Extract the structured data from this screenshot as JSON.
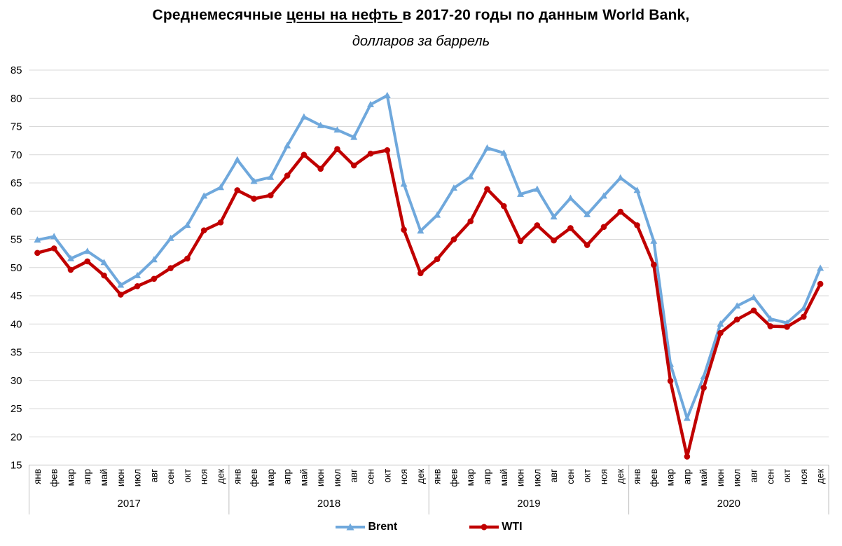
{
  "title": {
    "part1": "Среднемесячные ",
    "underlined": "цены на нефть ",
    "part2": "в 2017-20 годы по данным World Bank,",
    "subtitle": "долларов за баррель"
  },
  "chart_data": {
    "type": "line",
    "x_months": [
      "янв",
      "фев",
      "мар",
      "апр",
      "май",
      "июн",
      "июл",
      "авг",
      "сен",
      "окт",
      "ноя",
      "дек"
    ],
    "x_years": [
      "2017",
      "2018",
      "2019",
      "2020"
    ],
    "y_ticks": [
      15,
      20,
      25,
      30,
      35,
      40,
      45,
      50,
      55,
      60,
      65,
      70,
      75,
      80,
      85
    ],
    "ylim": [
      15,
      85
    ],
    "grid": "horizontal",
    "grid_color": "#D9D9D9",
    "axis_color": "#BFBFBF",
    "label_color": "#000000",
    "legend_position": "bottom",
    "series": [
      {
        "name": "Brent",
        "color": "#6FA8DC",
        "marker": "triangle",
        "values": [
          54.9,
          55.5,
          51.6,
          52.9,
          50.9,
          46.9,
          48.6,
          51.4,
          55.2,
          57.5,
          62.7,
          64.2,
          69.1,
          65.3,
          66.0,
          71.6,
          76.7,
          75.2,
          74.4,
          73.1,
          78.9,
          80.5,
          64.8,
          56.5,
          59.3,
          64.1,
          66.1,
          71.2,
          70.3,
          63.0,
          63.9,
          59.0,
          62.3,
          59.4,
          62.7,
          65.9,
          63.7,
          54.7,
          32.9,
          23.3,
          30.7,
          40.0,
          43.2,
          44.7,
          40.9,
          40.2,
          42.8,
          49.9
        ]
      },
      {
        "name": "WTI",
        "color": "#C00000",
        "marker": "circle",
        "values": [
          52.6,
          53.4,
          49.6,
          51.1,
          48.6,
          45.2,
          46.7,
          48.0,
          49.9,
          51.6,
          56.6,
          58.0,
          63.7,
          62.2,
          62.8,
          66.3,
          70.0,
          67.5,
          71.0,
          68.1,
          70.2,
          70.8,
          56.7,
          49.0,
          51.5,
          55.0,
          58.2,
          63.9,
          60.9,
          54.7,
          57.5,
          54.8,
          57.0,
          54.0,
          57.2,
          59.9,
          57.5,
          50.5,
          29.9,
          16.5,
          28.7,
          38.4,
          40.8,
          42.4,
          39.6,
          39.5,
          41.3,
          47.1
        ]
      }
    ]
  }
}
